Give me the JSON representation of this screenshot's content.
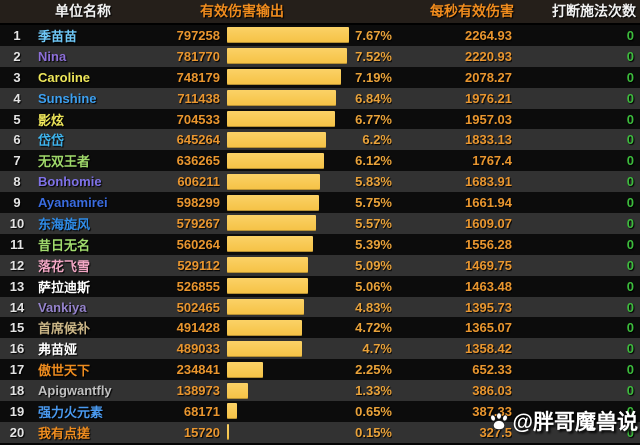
{
  "header": {
    "name_label": "单位名称",
    "damage_label": "有效伤害输出",
    "dps_label": "每秒有效伤害",
    "interrupt_label": "打断施法次数"
  },
  "colors": {
    "bar": "#f5c245",
    "value_orange": "#e9962f",
    "interrupt_green": "#3dbb3d",
    "header_bg": "#251f1a",
    "row_dark": "#0c0c0c",
    "row_light": "#323232"
  },
  "watermark": {
    "icon": "paw-icon",
    "text": "@胖哥魔兽说"
  },
  "rows": [
    {
      "rank": "1",
      "name": "季苗苗",
      "color": "#6fc8f7",
      "damage": 797258,
      "percent": "7.67%",
      "dps": "2264.93",
      "interrupts": "0"
    },
    {
      "rank": "2",
      "name": "Nina",
      "color": "#8d6fd8",
      "damage": 781770,
      "percent": "7.52%",
      "dps": "2220.93",
      "interrupts": "0"
    },
    {
      "rank": "3",
      "name": "Caroline",
      "color": "#eee65a",
      "damage": 748179,
      "percent": "7.19%",
      "dps": "2078.27",
      "interrupts": "0"
    },
    {
      "rank": "4",
      "name": "Sunshine",
      "color": "#3da0f0",
      "damage": 711438,
      "percent": "6.84%",
      "dps": "1976.21",
      "interrupts": "0"
    },
    {
      "rank": "5",
      "name": "影炫",
      "color": "#eee65a",
      "damage": 704533,
      "percent": "6.77%",
      "dps": "1957.03",
      "interrupts": "0"
    },
    {
      "rank": "6",
      "name": "岱岱",
      "color": "#3fb6f0",
      "damage": 645264,
      "percent": "6.2%",
      "dps": "1833.13",
      "interrupts": "0"
    },
    {
      "rank": "7",
      "name": "无双王者",
      "color": "#9fd86a",
      "damage": 636265,
      "percent": "6.12%",
      "dps": "1767.4",
      "interrupts": "0"
    },
    {
      "rank": "8",
      "name": "Bonhomie",
      "color": "#7f72e8",
      "damage": 606211,
      "percent": "5.83%",
      "dps": "1683.91",
      "interrupts": "0"
    },
    {
      "rank": "9",
      "name": "Ayanamirei",
      "color": "#3a6ce0",
      "damage": 598299,
      "percent": "5.75%",
      "dps": "1661.94",
      "interrupts": "0"
    },
    {
      "rank": "10",
      "name": "东海旋风",
      "color": "#2f8ce8",
      "damage": 579267,
      "percent": "5.57%",
      "dps": "1609.07",
      "interrupts": "0"
    },
    {
      "rank": "11",
      "name": "昔日无名",
      "color": "#a2dc6e",
      "damage": 560264,
      "percent": "5.39%",
      "dps": "1556.28",
      "interrupts": "0"
    },
    {
      "rank": "12",
      "name": "落花飞雪",
      "color": "#f2a6c4",
      "damage": 529112,
      "percent": "5.09%",
      "dps": "1469.75",
      "interrupts": "0"
    },
    {
      "rank": "13",
      "name": "萨拉迪斯",
      "color": "#ffffff",
      "damage": 526855,
      "percent": "5.06%",
      "dps": "1463.48",
      "interrupts": "0"
    },
    {
      "rank": "14",
      "name": "Vankiya",
      "color": "#9583cc",
      "damage": 502465,
      "percent": "4.83%",
      "dps": "1395.73",
      "interrupts": "0"
    },
    {
      "rank": "15",
      "name": "首席候补",
      "color": "#cbb687",
      "damage": 491428,
      "percent": "4.72%",
      "dps": "1365.07",
      "interrupts": "0"
    },
    {
      "rank": "16",
      "name": "弗苗娅",
      "color": "#ffffff",
      "damage": 489033,
      "percent": "4.7%",
      "dps": "1358.42",
      "interrupts": "0"
    },
    {
      "rank": "17",
      "name": "傲世天下",
      "color": "#ee8c1f",
      "damage": 234841,
      "percent": "2.25%",
      "dps": "652.33",
      "interrupts": "0"
    },
    {
      "rank": "18",
      "name": "Apigwantfly",
      "color": "#c0c0c0",
      "damage": 138973,
      "percent": "1.33%",
      "dps": "386.03",
      "interrupts": "0"
    },
    {
      "rank": "19",
      "name": "强力火元素",
      "color": "#4a9af0",
      "damage": 68171,
      "percent": "0.65%",
      "dps": "387.33",
      "interrupts": "0"
    },
    {
      "rank": "20",
      "name": "我有点搓",
      "color": "#ee8c1f",
      "damage": 15720,
      "percent": "0.15%",
      "dps": "327.5",
      "interrupts": "0"
    }
  ]
}
